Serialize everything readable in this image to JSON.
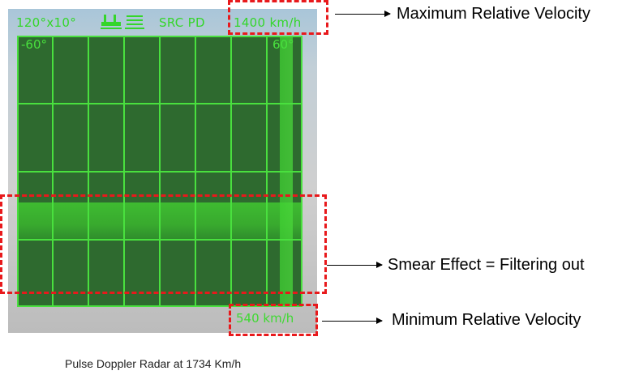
{
  "radar": {
    "range_label": "120°x10°",
    "mode_label": "SRC PD",
    "max_velocity": "1400 km/h",
    "min_velocity": "540 km/h",
    "left_angle": "-60°",
    "right_angle": "60°",
    "accent_color": "#49e03e",
    "icons": [
      "ground-vehicle-icon",
      "ship-icon"
    ]
  },
  "annotations": {
    "max_label": "Maximum Relative Velocity",
    "smear_label": "Smear Effect = Filtering out",
    "min_label": "Minimum Relative Velocity",
    "highlight_color": "#e8191c"
  },
  "caption": "Pulse Doppler Radar at 1734 Km/h"
}
